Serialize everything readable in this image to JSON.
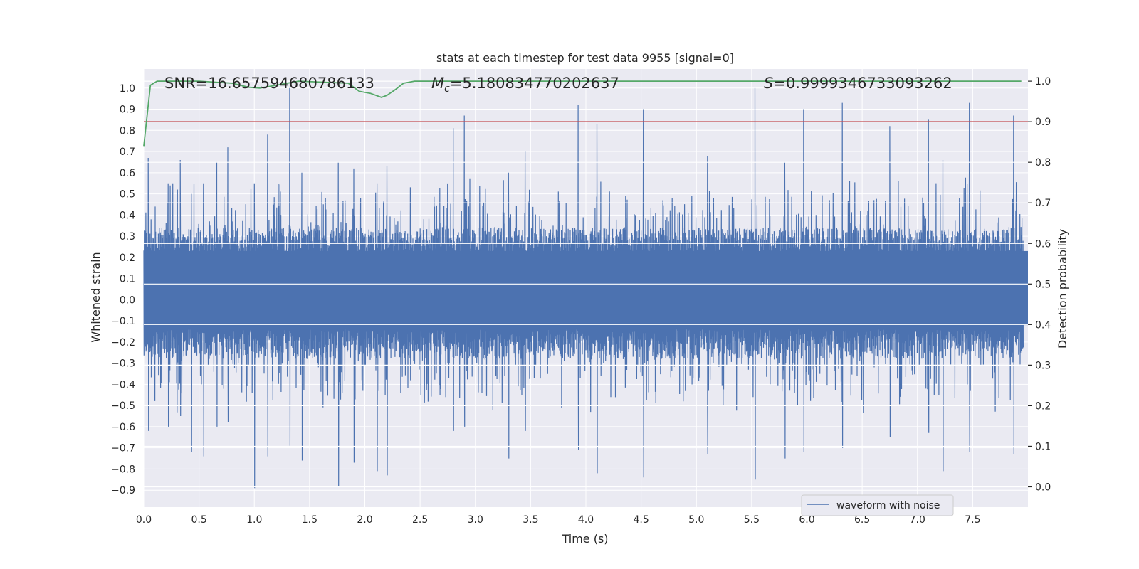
{
  "chart_data": {
    "type": "line",
    "title": "stats at each timestep for test data 9955 [signal=0]",
    "xlabel": "Time (s)",
    "ylabel_left": "Whitened strain",
    "ylabel_right": "Detection probability",
    "xlim": [
      0.0,
      8.0
    ],
    "ylim_left": [
      -0.98,
      1.09
    ],
    "ylim_right": [
      -0.05,
      1.03
    ],
    "x_ticks": [
      "0.0",
      "0.5",
      "1.0",
      "1.5",
      "2.0",
      "2.5",
      "3.0",
      "3.5",
      "4.0",
      "4.5",
      "5.0",
      "5.5",
      "6.0",
      "6.5",
      "7.0",
      "7.5"
    ],
    "y_left_ticks": [
      "−0.9",
      "−0.8",
      "−0.7",
      "−0.6",
      "−0.5",
      "−0.4",
      "−0.3",
      "−0.2",
      "−0.1",
      "0.0",
      "0.1",
      "0.2",
      "0.3",
      "0.4",
      "0.5",
      "0.6",
      "0.7",
      "0.8",
      "0.9",
      "1.0"
    ],
    "y_right_ticks": [
      "0.0",
      "0.1",
      "0.2",
      "0.3",
      "0.4",
      "0.5",
      "0.6",
      "0.7",
      "0.8",
      "0.9",
      "1.0"
    ],
    "annotations": {
      "snr": "SNR=16.657594680786133",
      "mc_symbol": "M",
      "mc_sub": "c",
      "mc_value": "=5.180834770202637",
      "s_symbol": "S",
      "s_value": "=0.9999346733093262"
    },
    "threshold": 0.9,
    "waveform_range": [
      -0.9,
      1.0
    ],
    "waveform_spikes": [
      {
        "x": 0.04,
        "hi": 0.67,
        "lo": -0.62
      },
      {
        "x": 0.22,
        "hi": 0.55,
        "lo": -0.6
      },
      {
        "x": 0.33,
        "hi": 0.66,
        "lo": -0.55
      },
      {
        "x": 0.43,
        "hi": 0.5,
        "lo": -0.72
      },
      {
        "x": 0.54,
        "hi": 0.55,
        "lo": -0.74
      },
      {
        "x": 0.66,
        "hi": 0.65,
        "lo": -0.6
      },
      {
        "x": 0.76,
        "hi": 0.72,
        "lo": -0.58
      },
      {
        "x": 1.0,
        "hi": 0.55,
        "lo": -0.89
      },
      {
        "x": 1.12,
        "hi": 0.78,
        "lo": -0.74
      },
      {
        "x": 1.32,
        "hi": 1.0,
        "lo": -0.69
      },
      {
        "x": 1.43,
        "hi": 0.6,
        "lo": -0.76
      },
      {
        "x": 1.76,
        "hi": 0.65,
        "lo": -0.88
      },
      {
        "x": 1.9,
        "hi": 0.62,
        "lo": -0.77
      },
      {
        "x": 2.11,
        "hi": 0.55,
        "lo": -0.81
      },
      {
        "x": 2.2,
        "hi": 0.63,
        "lo": -0.83
      },
      {
        "x": 2.8,
        "hi": 0.81,
        "lo": -0.62
      },
      {
        "x": 2.9,
        "hi": 0.87,
        "lo": -0.6
      },
      {
        "x": 3.3,
        "hi": 0.6,
        "lo": -0.75
      },
      {
        "x": 3.45,
        "hi": 0.7,
        "lo": -0.62
      },
      {
        "x": 3.93,
        "hi": 0.92,
        "lo": -0.71
      },
      {
        "x": 4.1,
        "hi": 0.83,
        "lo": -0.82
      },
      {
        "x": 4.52,
        "hi": 0.9,
        "lo": -0.84
      },
      {
        "x": 5.1,
        "hi": 0.68,
        "lo": -0.73
      },
      {
        "x": 5.53,
        "hi": 1.0,
        "lo": -0.85
      },
      {
        "x": 5.8,
        "hi": 0.65,
        "lo": -0.75
      },
      {
        "x": 5.97,
        "hi": 0.9,
        "lo": -0.72
      },
      {
        "x": 6.32,
        "hi": 0.93,
        "lo": -0.7
      },
      {
        "x": 6.75,
        "hi": 0.82,
        "lo": -0.65
      },
      {
        "x": 7.1,
        "hi": 0.85,
        "lo": -0.63
      },
      {
        "x": 7.23,
        "hi": 0.66,
        "lo": -0.81
      },
      {
        "x": 7.47,
        "hi": 0.93,
        "lo": -0.72
      },
      {
        "x": 7.87,
        "hi": 0.87,
        "lo": -0.73
      }
    ],
    "detection_probability": {
      "x": [
        0.0,
        0.06,
        0.12,
        0.5,
        0.8,
        0.95,
        1.05,
        1.2,
        1.4,
        1.85,
        1.95,
        2.05,
        2.15,
        2.2,
        2.28,
        2.35,
        2.45,
        3.0,
        4.0,
        5.0,
        6.0,
        7.0,
        7.94
      ],
      "y": [
        0.84,
        0.99,
        1.0,
        1.0,
        0.995,
        0.985,
        0.983,
        0.99,
        1.0,
        0.995,
        0.975,
        0.97,
        0.96,
        0.965,
        0.98,
        0.995,
        1.0,
        1.0,
        1.0,
        1.0,
        1.0,
        1.0,
        1.0
      ]
    },
    "legend": [
      "waveform with noise"
    ],
    "legend_position": "lower-right",
    "colors": {
      "waveform": "#4c72b0",
      "probability": "#55a868",
      "threshold": "#c44e52",
      "background": "#eaeaf2",
      "grid": "#ffffff"
    }
  }
}
